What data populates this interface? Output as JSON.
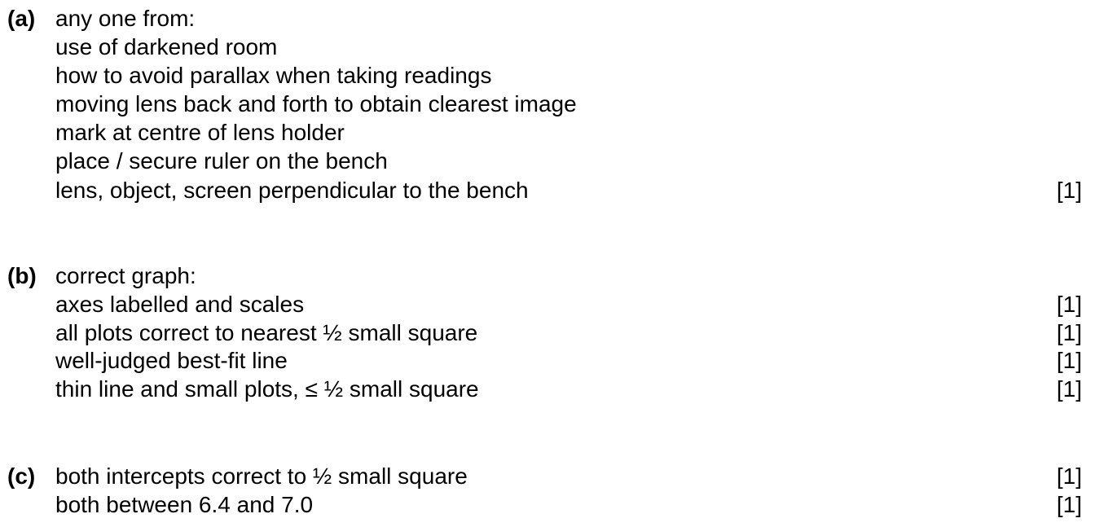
{
  "sections": [
    {
      "label": "(a)",
      "lines": [
        {
          "text": "any one from:",
          "mark": ""
        },
        {
          "text": "use of darkened room",
          "mark": ""
        },
        {
          "text": "how to avoid parallax when taking readings",
          "mark": ""
        },
        {
          "text": "moving lens back and forth to obtain clearest image",
          "mark": ""
        },
        {
          "text": "mark at centre of lens holder",
          "mark": ""
        },
        {
          "text": "place / secure ruler on the bench",
          "mark": ""
        },
        {
          "text": "lens, object, screen perpendicular to the bench",
          "mark": "[1]"
        }
      ]
    },
    {
      "label": "(b)",
      "lines": [
        {
          "text": "correct graph:",
          "mark": ""
        },
        {
          "text": "axes labelled and scales",
          "mark": "[1]"
        },
        {
          "text": "all plots correct to nearest ½ small square",
          "mark": "[1]"
        },
        {
          "text": "well-judged best-fit line",
          "mark": "[1]"
        },
        {
          "text": "thin line and small plots, ≤ ½ small square",
          "mark": "[1]"
        }
      ]
    },
    {
      "label": "(c)",
      "lines": [
        {
          "text": "both intercepts correct to ½ small square",
          "mark": "[1]"
        },
        {
          "text": "both between 6.4 and 7.0",
          "mark": "[1]"
        }
      ]
    }
  ]
}
